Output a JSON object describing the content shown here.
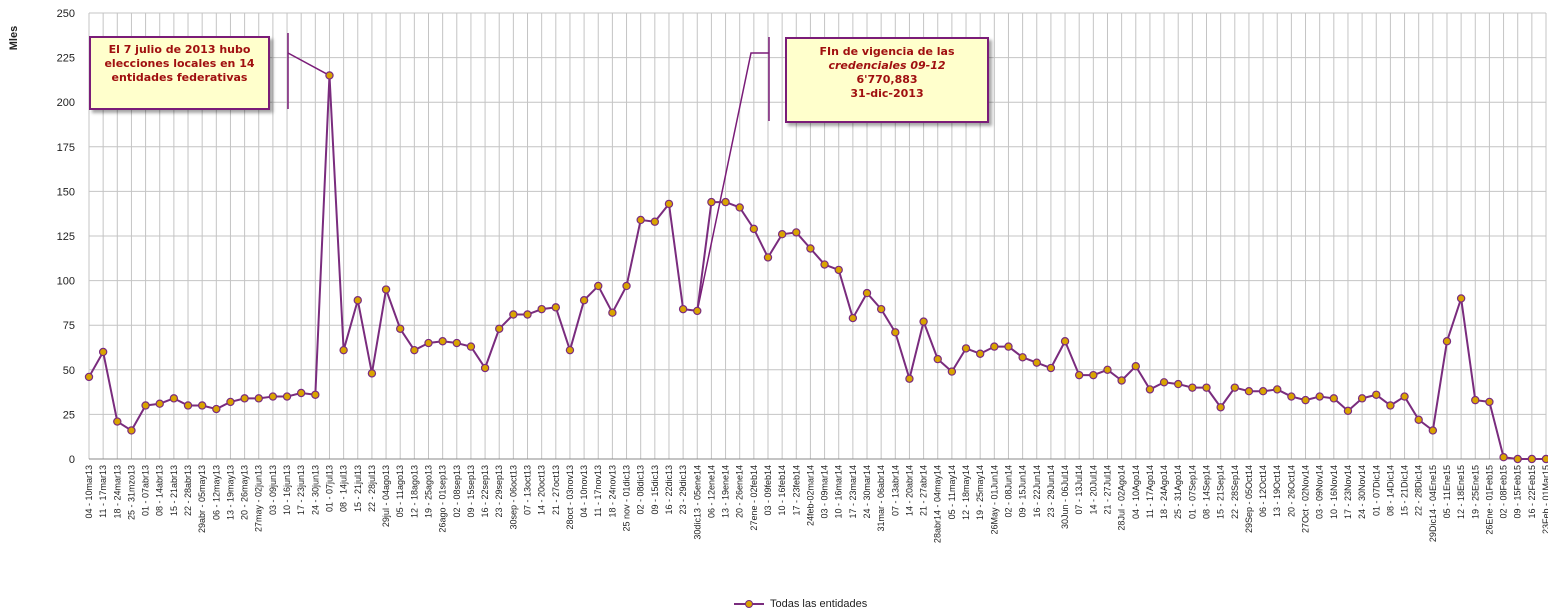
{
  "chart_data": {
    "type": "line",
    "ylabel": "Mles",
    "xlabel": "",
    "ylim": [
      0,
      250
    ],
    "yticks": [
      0,
      25,
      50,
      75,
      100,
      125,
      150,
      175,
      200,
      225,
      250
    ],
    "grid": true,
    "legend_position": "bottom-center",
    "categories": [
      "04 - 10mar13",
      "11 - 17mar13",
      "18 - 24mar13",
      "25 - 31mzo13",
      "01 - 07abr13",
      "08 - 14abr13",
      "15 - 21abr13",
      "22 - 28abr13",
      "29abr - 05may13",
      "06 - 12may13",
      "13 - 19may13",
      "20 - 26may13",
      "27may - 02jun13",
      "03 - 09jun13",
      "10 - 16jun13",
      "17 - 23jun13",
      "24 - 30jun13",
      "01 - 07jul13",
      "08 - 14jul13",
      "15 - 21jul13",
      "22 - 28jul13",
      "29jul - 04ago13",
      "05 - 11ago13",
      "12 - 18ago13",
      "19 - 25ago13",
      "26ago - 01sep13",
      "02 - 08sep13",
      "09 - 15sep13",
      "16 - 22sep13",
      "23 - 29sep13",
      "30sep - 06oct13",
      "07 - 13oct13",
      "14 - 20oct13",
      "21 - 27oct13",
      "28oct - 03nov13",
      "04 - 10nov13",
      "11 - 17nov13",
      "18 - 24nov13",
      "25 nov - 01dic13",
      "02 - 08dic13",
      "09 - 15dic13",
      "16 - 22dic13",
      "23 - 29dic13",
      "30dic13 - 05ene14",
      "06 - 12ene14",
      "13 - 19ene14",
      "20 - 26ene14",
      "27ene - 02feb14",
      "03 - 09feb14",
      "10 - 16feb14",
      "17 - 23feb14",
      "24feb-02mar14",
      "03 - 09mar14",
      "10 - 16mar14",
      "17 - 23mar14",
      "24 - 30mar14",
      "31mar - 06abr14",
      "07 - 13abr14",
      "14 - 20abr14",
      "21 - 27abr14",
      "28abr14 - 04may14",
      "05 - 11may14",
      "12 - 18may14",
      "19 - 25may14",
      "26May - 01Jun14",
      "02 - 08Jun14",
      "09 - 15Jun14",
      "16 - 22Jun14",
      "23 - 29Jun14",
      "30Jun - 06Jul14",
      "07 - 13Jul14",
      "14 - 20Jul14",
      "21 - 27Jul14",
      "28Jul - 02Ago14",
      "04 - 10Ago14",
      "11 - 17Ago14",
      "18 - 24Ago14",
      "25 - 31Ago14",
      "01 - 07Sep14",
      "08 - 14Sep14",
      "15 - 21Sep14",
      "22 - 28Sep14",
      "29Sep - 05Oct14",
      "06 - 12Oct14",
      "13 - 19Oct14",
      "20 - 26Oct14",
      "27Oct - 02Nov14",
      "03 - 09Nov14",
      "10 - 16Nov14",
      "17 - 23Nov14",
      "24 - 30Nov14",
      "01 - 07Dic14",
      "08 - 14Dic14",
      "15 - 21Dic14",
      "22 - 28Dic14",
      "29Dic14 - 04Ene15",
      "05 - 11Ene15",
      "12 - 18Ene15",
      "19 - 25Ene15",
      "26Ene - 01Feb15",
      "02 - 08Feb15",
      "09 - 15Feb15",
      "16 - 22Feb15",
      "23Feb - 01Mar15"
    ],
    "series": [
      {
        "name": "Todas las entidades",
        "color": "#7a2c7e",
        "marker_color": "#d9a400",
        "values": [
          46,
          60,
          21,
          16,
          30,
          31,
          34,
          30,
          30,
          28,
          32,
          34,
          34,
          35,
          35,
          37,
          36,
          215,
          61,
          89,
          48,
          95,
          73,
          61,
          65,
          66,
          65,
          63,
          51,
          73,
          81,
          81,
          84,
          85,
          61,
          89,
          97,
          82,
          97,
          134,
          133,
          143,
          84,
          83,
          144,
          144,
          141,
          129,
          113,
          126,
          127,
          118,
          109,
          106,
          79,
          93,
          84,
          71,
          45,
          77,
          56,
          49,
          62,
          59,
          63,
          63,
          57,
          54,
          51,
          66,
          47,
          47,
          50,
          44,
          52,
          39,
          43,
          42,
          40,
          40,
          29,
          40,
          38,
          38,
          39,
          35,
          33,
          35,
          34,
          27,
          34,
          36,
          30,
          35,
          22,
          16,
          66,
          90,
          33,
          32,
          1,
          0,
          0,
          0
        ]
      }
    ],
    "annotations": [
      {
        "id": "elecciones",
        "lines": [
          "El 7 julio de 2013 hubo",
          "elecciones locales en 14",
          "entidades federativas"
        ]
      },
      {
        "id": "vigencia",
        "lines": [
          "FIn de vigencia de las",
          "credenciales  09-12",
          "6'770,883",
          "31-dic-2013"
        ]
      }
    ]
  },
  "legend": {
    "label": "Todas las entidades"
  }
}
